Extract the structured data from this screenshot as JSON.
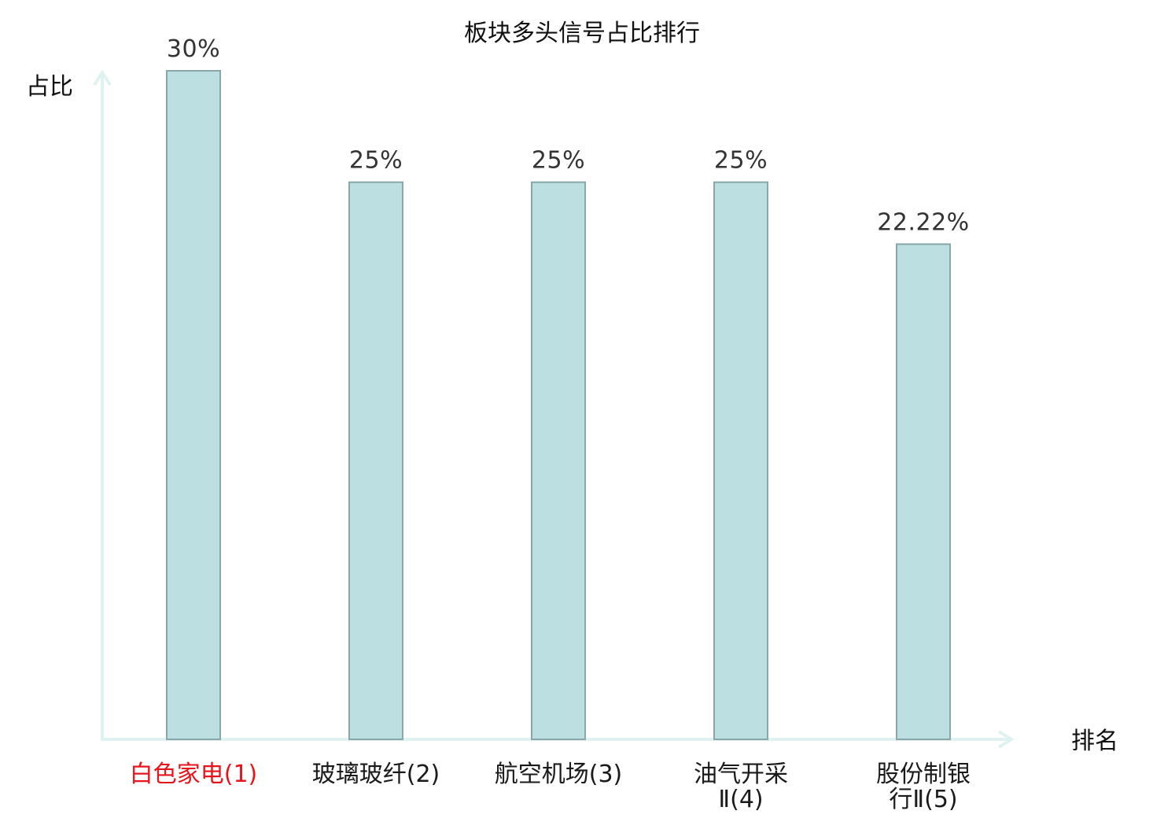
{
  "chart_data": {
    "type": "bar",
    "title": "板块多头信号占比排行",
    "ylabel": "占比",
    "xlabel": "排名",
    "categories": [
      "白色家电(1)",
      "玻璃玻纤(2)",
      "航空机场(3)",
      "油气开采Ⅱ(4)",
      "股份制银行Ⅱ(5)"
    ],
    "category_lines": [
      [
        "白色家电(1)"
      ],
      [
        "玻璃玻纤(2)"
      ],
      [
        "航空机场(3)"
      ],
      [
        "油气开采",
        "Ⅱ(4)"
      ],
      [
        "股份制银",
        "行Ⅱ(5)"
      ]
    ],
    "values": [
      30,
      25,
      25,
      25,
      22.22
    ],
    "value_labels": [
      "30%",
      "25%",
      "25%",
      "25%",
      "22.22%"
    ],
    "ylim": [
      0,
      30
    ],
    "grid": false,
    "highlight_index": 0,
    "colors": {
      "bar_fill": "#bce0e2",
      "bar_stroke": "#8aa6a8",
      "axis": "#dff2ef",
      "highlight_label": "#e8141b"
    }
  }
}
